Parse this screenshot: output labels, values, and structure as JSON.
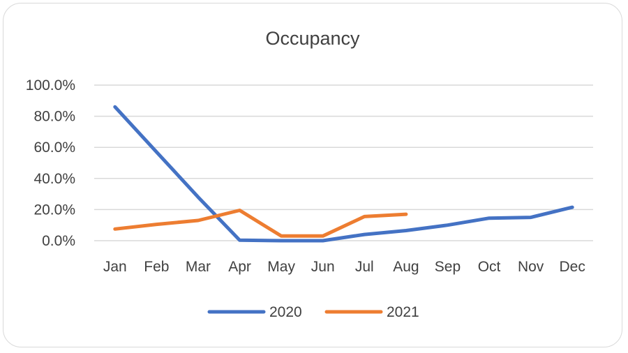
{
  "chart_data": {
    "type": "line",
    "title": "Occupancy",
    "xlabel": "",
    "ylabel": "",
    "categories": [
      "Jan",
      "Feb",
      "Mar",
      "Apr",
      "May",
      "Jun",
      "Jul",
      "Aug",
      "Sep",
      "Oct",
      "Nov",
      "Dec"
    ],
    "y_ticks": [
      "0.0%",
      "20.0%",
      "40.0%",
      "60.0%",
      "80.0%",
      "100.0%"
    ],
    "ylim": [
      0,
      100
    ],
    "y_unit": "percent",
    "grid": true,
    "legend_position": "bottom",
    "series": [
      {
        "name": "2020",
        "color": "#4472c4",
        "values": [
          86,
          57,
          28,
          0.3,
          0,
          0,
          4,
          6.5,
          10,
          14.5,
          15,
          21.5
        ]
      },
      {
        "name": "2021",
        "color": "#ed7d31",
        "values": [
          7.5,
          10.5,
          13,
          19.5,
          3,
          3,
          15.5,
          17,
          null,
          null,
          null,
          null
        ]
      }
    ]
  }
}
